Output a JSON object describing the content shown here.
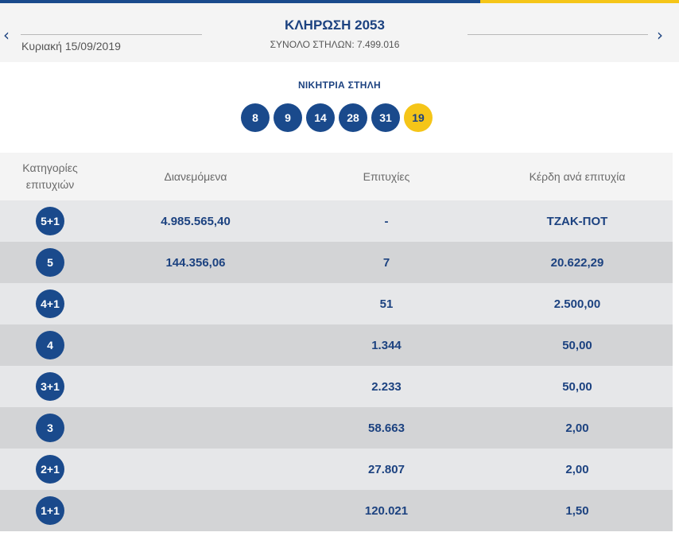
{
  "draw": {
    "title": "ΚΛΗΡΩΣΗ 2053",
    "date": "Κυριακή 15/09/2019",
    "columns_total": "ΣΥΝΟΛΟ ΣΤΗΛΩΝ: 7.499.016",
    "prev_icon": "‹",
    "next_icon": "›"
  },
  "winning": {
    "label": "ΝΙΚΗΤΡΙΑ ΣΤΗΛΗ",
    "numbers": [
      "8",
      "9",
      "14",
      "28",
      "31"
    ],
    "joker": "19"
  },
  "table": {
    "headers": {
      "category": "Κατηγορίες επιτυχιών",
      "distributed": "Διανεμόμενα",
      "winners": "Επιτυχίες",
      "prize": "Κέρδη ανά επιτυχία"
    },
    "rows": [
      {
        "category": "5+1",
        "distributed": "4.985.565,40",
        "winners": "-",
        "prize": "ΤΖΑΚ-ΠΟΤ"
      },
      {
        "category": "5",
        "distributed": "144.356,06",
        "winners": "7",
        "prize": "20.622,29"
      },
      {
        "category": "4+1",
        "distributed": "",
        "winners": "51",
        "prize": "2.500,00"
      },
      {
        "category": "4",
        "distributed": "",
        "winners": "1.344",
        "prize": "50,00"
      },
      {
        "category": "3+1",
        "distributed": "",
        "winners": "2.233",
        "prize": "50,00"
      },
      {
        "category": "3",
        "distributed": "",
        "winners": "58.663",
        "prize": "2,00"
      },
      {
        "category": "2+1",
        "distributed": "",
        "winners": "27.807",
        "prize": "2,00"
      },
      {
        "category": "1+1",
        "distributed": "",
        "winners": "120.021",
        "prize": "1,50"
      }
    ]
  },
  "colors": {
    "brand_blue": "#1a4a8c",
    "joker_yellow": "#f5c518",
    "row_light": "#e6e7e9",
    "row_dark": "#d3d4d6"
  }
}
